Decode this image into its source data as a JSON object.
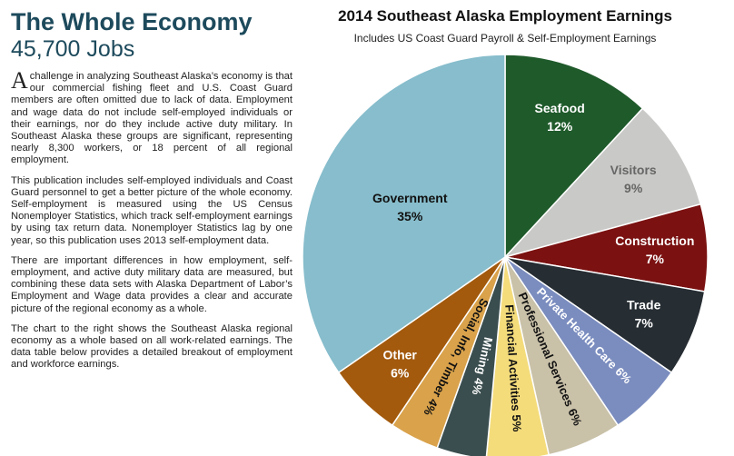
{
  "header": {
    "title": "The Whole Economy",
    "subtitle": "45,700 Jobs"
  },
  "paragraphs": [
    "A challenge in analyzing Southeast Alaska’s economy is that our commercial fishing fleet and U.S. Coast Guard members are often omitted due to lack of data. Employment and wage data do not include self-employed individuals or their earnings, nor do they include active duty military. In Southeast Alaska these groups are significant, representing nearly 8,300 workers, or 18 percent of all regional employment.",
    "This publication includes self-employed individuals and Coast Guard personnel to get a better picture of the whole economy. Self-employment is measured using the US Census Nonemployer Statistics, which track self-employment earnings by using tax return data. Nonemployer Statistics lag by one year, so this publication uses 2013 self-employment data.",
    "There are important differences in how employment, self-employment, and active duty military data are measured, but combining these data sets with Alaska Department of Labor’s Employment and Wage data provides a clear and accurate picture of the regional economy as a whole.",
    "The chart to the right shows the Southeast Alaska regional economy as a whole based on all work-related earnings. The data table below provides a detailed breakout of employment and workforce earnings."
  ],
  "chart_data": {
    "type": "pie",
    "title": "2014 Southeast Alaska Employment Earnings",
    "subtitle": "Includes US Coast Guard Payroll & Self-Employment Earnings",
    "categories": [
      "Seafood",
      "Visitors",
      "Construction",
      "Trade",
      "Private Health Care",
      "Professional Services",
      "Financial Activities",
      "Mining",
      "Social, Info, Timber",
      "Other",
      "Government"
    ],
    "values": [
      12,
      9,
      7,
      7,
      6,
      6,
      5,
      4,
      4,
      6,
      35
    ],
    "value_labels": [
      "12%",
      "9%",
      "7%",
      "7%",
      "6%",
      "6%",
      "5%",
      "4%",
      "4%",
      "6%",
      "35%"
    ],
    "colors": [
      "#1f5a2b",
      "#c9c9c7",
      "#7b1111",
      "#262d33",
      "#7b8dbf",
      "#c9c1a8",
      "#f4dc7b",
      "#3b4e4f",
      "#d9a24b",
      "#a35a0d",
      "#87bdcc"
    ]
  }
}
